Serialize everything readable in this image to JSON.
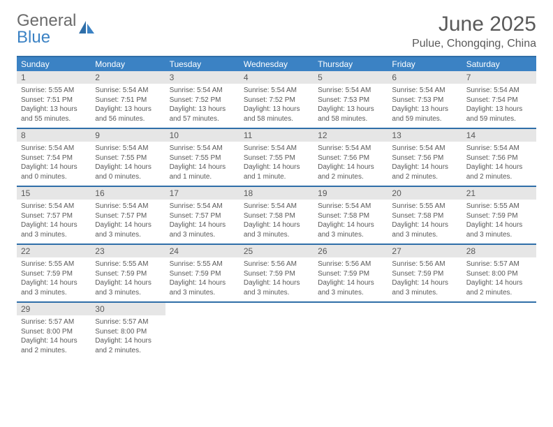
{
  "logo": {
    "word1": "General",
    "word2": "Blue"
  },
  "title": "June 2025",
  "location": "Pulue, Chongqing, China",
  "colors": {
    "header_bg": "#3b82c4",
    "header_text": "#ffffff",
    "rule": "#2f6ea8",
    "daynum_bg": "#e6e6e6",
    "body_text": "#595959",
    "logo_gray": "#6b6b6b",
    "logo_blue": "#3b82c4",
    "page_bg": "#ffffff"
  },
  "typography": {
    "title_fontsize": 30,
    "location_fontsize": 16,
    "dow_fontsize": 12,
    "daynum_fontsize": 12,
    "body_fontsize": 10
  },
  "dow": [
    "Sunday",
    "Monday",
    "Tuesday",
    "Wednesday",
    "Thursday",
    "Friday",
    "Saturday"
  ],
  "weeks": [
    [
      {
        "n": "1",
        "sr": "Sunrise: 5:55 AM",
        "ss": "Sunset: 7:51 PM",
        "dl1": "Daylight: 13 hours",
        "dl2": "and 55 minutes."
      },
      {
        "n": "2",
        "sr": "Sunrise: 5:54 AM",
        "ss": "Sunset: 7:51 PM",
        "dl1": "Daylight: 13 hours",
        "dl2": "and 56 minutes."
      },
      {
        "n": "3",
        "sr": "Sunrise: 5:54 AM",
        "ss": "Sunset: 7:52 PM",
        "dl1": "Daylight: 13 hours",
        "dl2": "and 57 minutes."
      },
      {
        "n": "4",
        "sr": "Sunrise: 5:54 AM",
        "ss": "Sunset: 7:52 PM",
        "dl1": "Daylight: 13 hours",
        "dl2": "and 58 minutes."
      },
      {
        "n": "5",
        "sr": "Sunrise: 5:54 AM",
        "ss": "Sunset: 7:53 PM",
        "dl1": "Daylight: 13 hours",
        "dl2": "and 58 minutes."
      },
      {
        "n": "6",
        "sr": "Sunrise: 5:54 AM",
        "ss": "Sunset: 7:53 PM",
        "dl1": "Daylight: 13 hours",
        "dl2": "and 59 minutes."
      },
      {
        "n": "7",
        "sr": "Sunrise: 5:54 AM",
        "ss": "Sunset: 7:54 PM",
        "dl1": "Daylight: 13 hours",
        "dl2": "and 59 minutes."
      }
    ],
    [
      {
        "n": "8",
        "sr": "Sunrise: 5:54 AM",
        "ss": "Sunset: 7:54 PM",
        "dl1": "Daylight: 14 hours",
        "dl2": "and 0 minutes."
      },
      {
        "n": "9",
        "sr": "Sunrise: 5:54 AM",
        "ss": "Sunset: 7:55 PM",
        "dl1": "Daylight: 14 hours",
        "dl2": "and 0 minutes."
      },
      {
        "n": "10",
        "sr": "Sunrise: 5:54 AM",
        "ss": "Sunset: 7:55 PM",
        "dl1": "Daylight: 14 hours",
        "dl2": "and 1 minute."
      },
      {
        "n": "11",
        "sr": "Sunrise: 5:54 AM",
        "ss": "Sunset: 7:55 PM",
        "dl1": "Daylight: 14 hours",
        "dl2": "and 1 minute."
      },
      {
        "n": "12",
        "sr": "Sunrise: 5:54 AM",
        "ss": "Sunset: 7:56 PM",
        "dl1": "Daylight: 14 hours",
        "dl2": "and 2 minutes."
      },
      {
        "n": "13",
        "sr": "Sunrise: 5:54 AM",
        "ss": "Sunset: 7:56 PM",
        "dl1": "Daylight: 14 hours",
        "dl2": "and 2 minutes."
      },
      {
        "n": "14",
        "sr": "Sunrise: 5:54 AM",
        "ss": "Sunset: 7:56 PM",
        "dl1": "Daylight: 14 hours",
        "dl2": "and 2 minutes."
      }
    ],
    [
      {
        "n": "15",
        "sr": "Sunrise: 5:54 AM",
        "ss": "Sunset: 7:57 PM",
        "dl1": "Daylight: 14 hours",
        "dl2": "and 3 minutes."
      },
      {
        "n": "16",
        "sr": "Sunrise: 5:54 AM",
        "ss": "Sunset: 7:57 PM",
        "dl1": "Daylight: 14 hours",
        "dl2": "and 3 minutes."
      },
      {
        "n": "17",
        "sr": "Sunrise: 5:54 AM",
        "ss": "Sunset: 7:57 PM",
        "dl1": "Daylight: 14 hours",
        "dl2": "and 3 minutes."
      },
      {
        "n": "18",
        "sr": "Sunrise: 5:54 AM",
        "ss": "Sunset: 7:58 PM",
        "dl1": "Daylight: 14 hours",
        "dl2": "and 3 minutes."
      },
      {
        "n": "19",
        "sr": "Sunrise: 5:54 AM",
        "ss": "Sunset: 7:58 PM",
        "dl1": "Daylight: 14 hours",
        "dl2": "and 3 minutes."
      },
      {
        "n": "20",
        "sr": "Sunrise: 5:55 AM",
        "ss": "Sunset: 7:58 PM",
        "dl1": "Daylight: 14 hours",
        "dl2": "and 3 minutes."
      },
      {
        "n": "21",
        "sr": "Sunrise: 5:55 AM",
        "ss": "Sunset: 7:59 PM",
        "dl1": "Daylight: 14 hours",
        "dl2": "and 3 minutes."
      }
    ],
    [
      {
        "n": "22",
        "sr": "Sunrise: 5:55 AM",
        "ss": "Sunset: 7:59 PM",
        "dl1": "Daylight: 14 hours",
        "dl2": "and 3 minutes."
      },
      {
        "n": "23",
        "sr": "Sunrise: 5:55 AM",
        "ss": "Sunset: 7:59 PM",
        "dl1": "Daylight: 14 hours",
        "dl2": "and 3 minutes."
      },
      {
        "n": "24",
        "sr": "Sunrise: 5:55 AM",
        "ss": "Sunset: 7:59 PM",
        "dl1": "Daylight: 14 hours",
        "dl2": "and 3 minutes."
      },
      {
        "n": "25",
        "sr": "Sunrise: 5:56 AM",
        "ss": "Sunset: 7:59 PM",
        "dl1": "Daylight: 14 hours",
        "dl2": "and 3 minutes."
      },
      {
        "n": "26",
        "sr": "Sunrise: 5:56 AM",
        "ss": "Sunset: 7:59 PM",
        "dl1": "Daylight: 14 hours",
        "dl2": "and 3 minutes."
      },
      {
        "n": "27",
        "sr": "Sunrise: 5:56 AM",
        "ss": "Sunset: 7:59 PM",
        "dl1": "Daylight: 14 hours",
        "dl2": "and 3 minutes."
      },
      {
        "n": "28",
        "sr": "Sunrise: 5:57 AM",
        "ss": "Sunset: 8:00 PM",
        "dl1": "Daylight: 14 hours",
        "dl2": "and 2 minutes."
      }
    ],
    [
      {
        "n": "29",
        "sr": "Sunrise: 5:57 AM",
        "ss": "Sunset: 8:00 PM",
        "dl1": "Daylight: 14 hours",
        "dl2": "and 2 minutes."
      },
      {
        "n": "30",
        "sr": "Sunrise: 5:57 AM",
        "ss": "Sunset: 8:00 PM",
        "dl1": "Daylight: 14 hours",
        "dl2": "and 2 minutes."
      },
      null,
      null,
      null,
      null,
      null
    ]
  ]
}
